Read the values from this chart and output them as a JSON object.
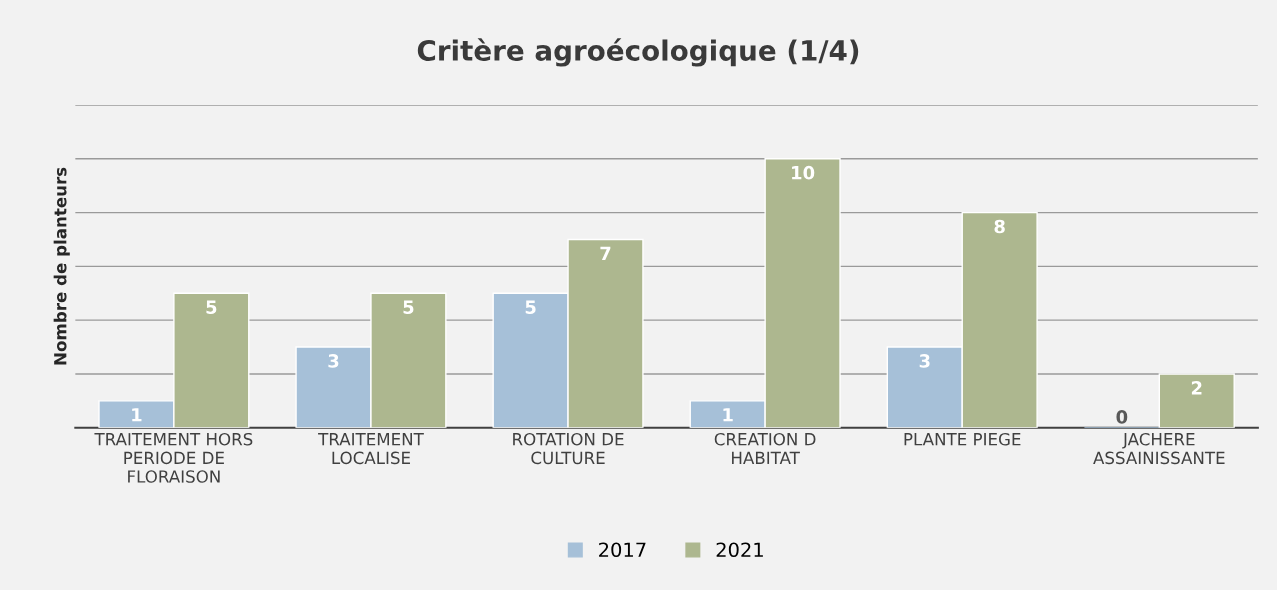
{
  "chart_data": {
    "type": "bar",
    "title": "Critère agroécologique (1/4)",
    "ylabel": "Nombre de planteurs",
    "categories": [
      "TRAITEMENT HORS\nPERIODE DE\nFLORAISON",
      "TRAITEMENT\nLOCALISE",
      "ROTATION DE\nCULTURE",
      "CREATION D\nHABITAT",
      "PLANTE PIEGE",
      "JACHERE\nASSAINISSANTE"
    ],
    "series": [
      {
        "name": "2017",
        "color": "#a6c0d8",
        "values": [
          1,
          3,
          5,
          1,
          3,
          0
        ]
      },
      {
        "name": "2021",
        "color": "#adb78f",
        "values": [
          5,
          5,
          7,
          10,
          8,
          2
        ]
      }
    ],
    "ylim": [
      0,
      12
    ],
    "yticks": [
      {
        "value": 0,
        "label": null
      },
      {
        "value": 2,
        "label": null
      },
      {
        "value": 4,
        "label": null
      },
      {
        "value": 6,
        "label": null
      },
      {
        "value": 8,
        "label": null
      },
      {
        "value": 10,
        "label": null
      },
      {
        "value": 12,
        "label": null
      }
    ],
    "tick_labels": "x",
    "grid": "y",
    "legend": "bottom",
    "data_labels": true
  }
}
